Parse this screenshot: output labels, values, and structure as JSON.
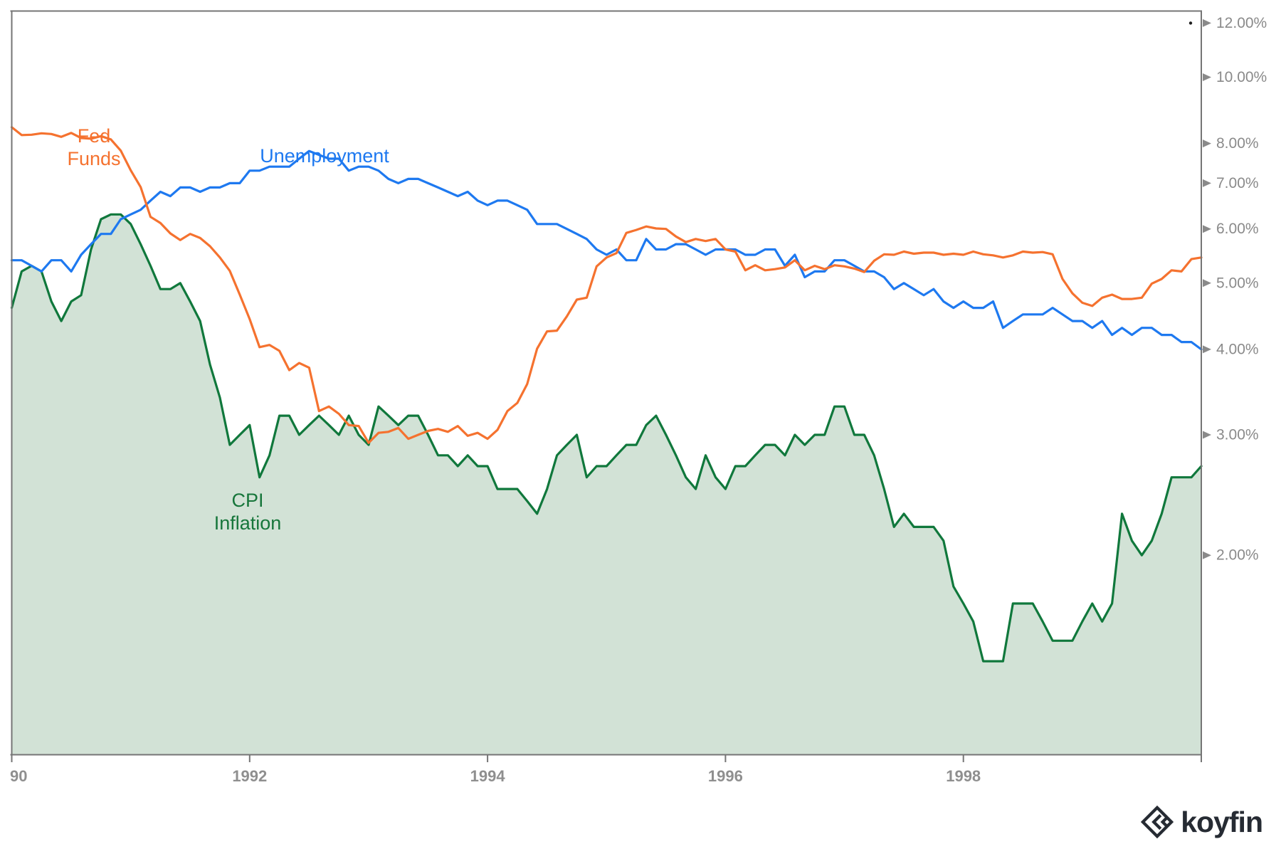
{
  "branding": {
    "logo_text": "koyfin"
  },
  "chart_data": {
    "type": "line",
    "title": "",
    "x_start": "1989-12",
    "x_end": "1999-12",
    "x_frequency": "monthly",
    "grid": false,
    "legend_position": "inline-annotations",
    "y_axis": {
      "scale": "log",
      "side": "right",
      "range_percent": [
        1.02,
        12.5
      ],
      "ticks": [
        {
          "label": "12.00%",
          "value": 12
        },
        {
          "label": "10.00%",
          "value": 10
        },
        {
          "label": "8.00%",
          "value": 8
        },
        {
          "label": "7.00%",
          "value": 7
        },
        {
          "label": "6.00%",
          "value": 6
        },
        {
          "label": "5.00%",
          "value": 5
        },
        {
          "label": "4.00%",
          "value": 4
        },
        {
          "label": "3.00%",
          "value": 3
        },
        {
          "label": "2.00%",
          "value": 2
        }
      ]
    },
    "x_axis": {
      "ticks": [
        {
          "label": "90",
          "month_index": 0
        },
        {
          "label": "1992",
          "month_index": 24
        },
        {
          "label": "1994",
          "month_index": 48
        },
        {
          "label": "1996",
          "month_index": 72
        },
        {
          "label": "1998",
          "month_index": 96
        }
      ]
    },
    "style": {
      "frame_color": "#757575",
      "y_tick_label_color": "#8A8A8A",
      "x_tick_label_color": "#8F8F8F",
      "marker_dot_color": "#1F1F1F"
    },
    "annotations": {
      "fed_funds": {
        "line1": "Fed",
        "line2": "Funds"
      },
      "unemployment": {
        "line1": "Unemployment"
      },
      "cpi": {
        "line1": "CPI",
        "line2": "Inflation"
      }
    },
    "series": [
      {
        "name": "Fed Funds",
        "style": "line",
        "color": "#F5722F",
        "values": [
          8.45,
          8.23,
          8.24,
          8.28,
          8.26,
          8.18,
          8.29,
          8.15,
          8.13,
          8.2,
          8.11,
          7.81,
          7.31,
          6.91,
          6.25,
          6.12,
          5.91,
          5.78,
          5.9,
          5.82,
          5.66,
          5.45,
          5.21,
          4.81,
          4.43,
          4.03,
          4.06,
          3.98,
          3.73,
          3.82,
          3.76,
          3.25,
          3.3,
          3.22,
          3.1,
          3.09,
          2.92,
          3.02,
          3.03,
          3.07,
          2.96,
          3.0,
          3.04,
          3.06,
          3.03,
          3.09,
          2.99,
          3.02,
          2.96,
          3.05,
          3.25,
          3.34,
          3.56,
          4.01,
          4.25,
          4.26,
          4.47,
          4.73,
          4.76,
          5.29,
          5.45,
          5.53,
          5.92,
          5.98,
          6.05,
          6.01,
          6.0,
          5.85,
          5.74,
          5.8,
          5.76,
          5.8,
          5.6,
          5.56,
          5.22,
          5.31,
          5.22,
          5.24,
          5.27,
          5.4,
          5.22,
          5.3,
          5.24,
          5.31,
          5.29,
          5.25,
          5.19,
          5.39,
          5.51,
          5.5,
          5.56,
          5.52,
          5.54,
          5.54,
          5.5,
          5.52,
          5.5,
          5.56,
          5.51,
          5.49,
          5.45,
          5.49,
          5.56,
          5.54,
          5.55,
          5.51,
          5.07,
          4.83,
          4.68,
          4.63,
          4.76,
          4.81,
          4.74,
          4.74,
          4.76,
          4.99,
          5.07,
          5.22,
          5.2,
          5.42,
          5.45
        ]
      },
      {
        "name": "Unemployment",
        "style": "line",
        "color": "#1E79F0",
        "values": [
          5.4,
          5.4,
          5.3,
          5.2,
          5.4,
          5.4,
          5.2,
          5.5,
          5.7,
          5.9,
          5.9,
          6.2,
          6.3,
          6.4,
          6.6,
          6.8,
          6.7,
          6.9,
          6.9,
          6.8,
          6.9,
          6.9,
          7.0,
          7.0,
          7.3,
          7.3,
          7.4,
          7.4,
          7.4,
          7.6,
          7.8,
          7.7,
          7.6,
          7.6,
          7.3,
          7.4,
          7.4,
          7.3,
          7.1,
          7.0,
          7.1,
          7.1,
          7.0,
          6.9,
          6.8,
          6.7,
          6.8,
          6.6,
          6.5,
          6.6,
          6.6,
          6.5,
          6.4,
          6.1,
          6.1,
          6.1,
          6.0,
          5.9,
          5.8,
          5.6,
          5.5,
          5.6,
          5.4,
          5.4,
          5.8,
          5.6,
          5.6,
          5.7,
          5.7,
          5.6,
          5.5,
          5.6,
          5.6,
          5.6,
          5.5,
          5.5,
          5.6,
          5.6,
          5.3,
          5.5,
          5.1,
          5.2,
          5.2,
          5.4,
          5.4,
          5.3,
          5.2,
          5.2,
          5.1,
          4.9,
          5.0,
          4.9,
          4.8,
          4.9,
          4.7,
          4.6,
          4.7,
          4.6,
          4.6,
          4.7,
          4.3,
          4.4,
          4.5,
          4.5,
          4.5,
          4.6,
          4.5,
          4.4,
          4.4,
          4.3,
          4.4,
          4.2,
          4.3,
          4.2,
          4.3,
          4.3,
          4.2,
          4.2,
          4.1,
          4.1,
          4.0
        ]
      },
      {
        "name": "CPI Inflation",
        "style": "area",
        "color": "#10783C",
        "fill": "#D2E2D6",
        "values": [
          4.6,
          5.2,
          5.3,
          5.2,
          4.7,
          4.4,
          4.7,
          4.8,
          5.6,
          6.2,
          6.3,
          6.3,
          6.1,
          5.7,
          5.3,
          4.9,
          4.9,
          5.0,
          4.7,
          4.4,
          3.8,
          3.4,
          2.9,
          3.0,
          3.1,
          2.6,
          2.8,
          3.2,
          3.2,
          3.0,
          3.1,
          3.2,
          3.1,
          3.0,
          3.2,
          3.0,
          2.9,
          3.3,
          3.2,
          3.1,
          3.2,
          3.2,
          3.0,
          2.8,
          2.8,
          2.7,
          2.8,
          2.7,
          2.7,
          2.5,
          2.5,
          2.5,
          2.4,
          2.3,
          2.5,
          2.8,
          2.9,
          3.0,
          2.6,
          2.7,
          2.7,
          2.8,
          2.9,
          2.9,
          3.1,
          3.2,
          3.0,
          2.8,
          2.6,
          2.5,
          2.8,
          2.6,
          2.5,
          2.7,
          2.7,
          2.8,
          2.9,
          2.9,
          2.8,
          3.0,
          2.9,
          3.0,
          3.0,
          3.3,
          3.3,
          3.0,
          3.0,
          2.8,
          2.5,
          2.2,
          2.3,
          2.2,
          2.2,
          2.2,
          2.1,
          1.8,
          1.7,
          1.6,
          1.4,
          1.4,
          1.4,
          1.7,
          1.7,
          1.7,
          1.6,
          1.5,
          1.5,
          1.5,
          1.6,
          1.7,
          1.6,
          1.7,
          2.3,
          2.1,
          2.0,
          2.1,
          2.3,
          2.6,
          2.6,
          2.6,
          2.7
        ]
      }
    ]
  }
}
